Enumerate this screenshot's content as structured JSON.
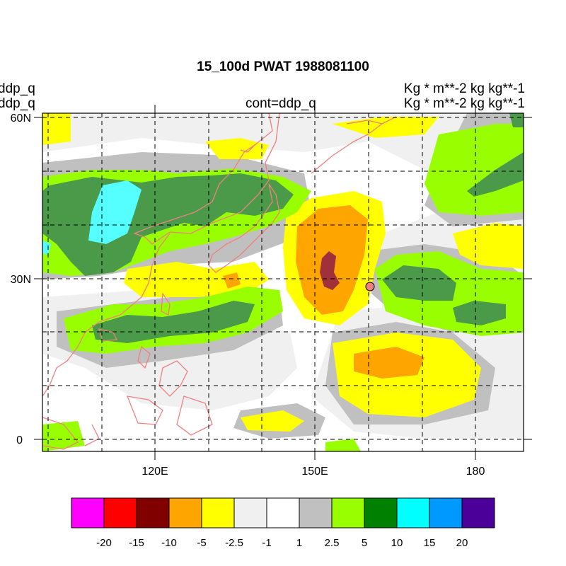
{
  "title": "15_100d PWAT  1988081100",
  "left_labels": [
    "ddp_q",
    "ddp_q"
  ],
  "center_label": "cont=ddp_q",
  "right_labels": [
    "Kg  * m**-2 kg kg**-1",
    "Kg  * m**-2 kg kg**-1"
  ],
  "map": {
    "lat_ticks": [
      "60N",
      "30N",
      "0"
    ],
    "lon_ticks": [
      "120E",
      "150E",
      "180"
    ],
    "coastline_color": "#f08080",
    "marker_color": "#f08080"
  },
  "colorbar": {
    "colors": [
      "#ff00ff",
      "#ff0000",
      "#800000",
      "#ffa500",
      "#ffff00",
      "#f0f0f0",
      "#ffffff",
      "#c0c0c0",
      "#99ff00",
      "#008000",
      "#00ffff",
      "#0099ff",
      "#4b0099"
    ],
    "labels": [
      "-20",
      "-15",
      "-10",
      "-5",
      "-2.5",
      "-1",
      "1",
      "2.5",
      "5",
      "10",
      "15",
      "20"
    ]
  }
}
